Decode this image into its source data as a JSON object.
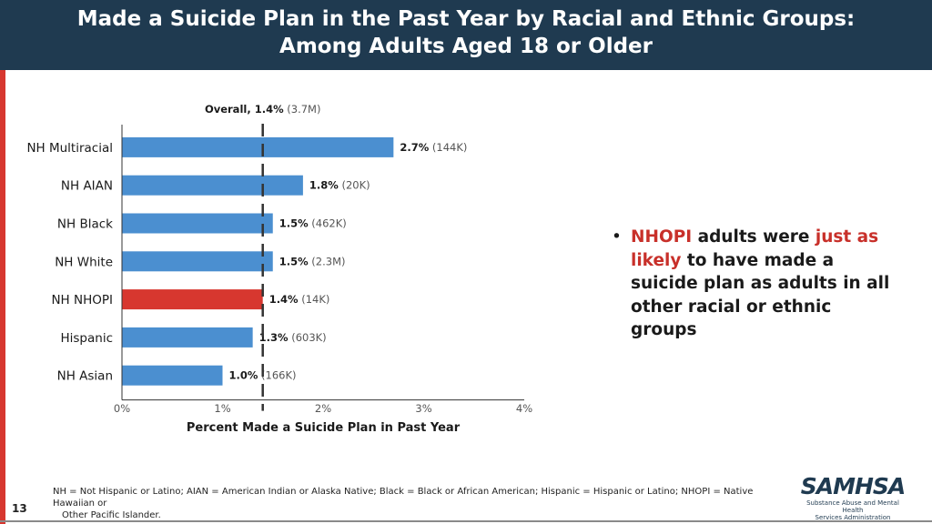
{
  "header": {
    "title_line1": "Made a Suicide Plan in the Past Year by Racial and Ethnic Groups:",
    "title_line2": "Among Adults Aged 18 or Older"
  },
  "chart_data": {
    "type": "bar",
    "orientation": "horizontal",
    "reference": {
      "label": "Overall, ",
      "value_text": "1.4%",
      "count": "(3.7M)",
      "value": 1.4
    },
    "categories": [
      "NH Multiracial",
      "NH AIAN",
      "NH Black",
      "NH White",
      "NH NHOPI",
      "Hispanic",
      "NH Asian"
    ],
    "values": [
      2.7,
      1.8,
      1.5,
      1.5,
      1.4,
      1.3,
      1.0
    ],
    "value_labels": [
      "2.7%",
      "1.8%",
      "1.5%",
      "1.5%",
      "1.4%",
      "1.3%",
      "1.0%"
    ],
    "counts": [
      "(144K)",
      "(20K)",
      "(462K)",
      "(2.3M)",
      "(14K)",
      "(603K)",
      "(166K)"
    ],
    "highlight": "NH NHOPI",
    "colors": {
      "bar": "#4b8fd0",
      "highlight": "#d7372f",
      "reference": "#333333"
    },
    "xlabel": "Percent Made a Suicide Plan in Past Year",
    "xlim": [
      0,
      4
    ],
    "xticks": [
      "0%",
      "1%",
      "2%",
      "3%",
      "4%"
    ],
    "grid": false
  },
  "bullet": {
    "marker": "•",
    "part1": "NHOPI",
    "part2": " adults were ",
    "part3": "just as likely",
    "part4": " to have made a suicide plan as adults in all other racial or ethnic groups"
  },
  "footnote": {
    "line1": "NH = Not Hispanic or Latino; AIAN = American Indian or Alaska Native; Black = Black or African American; Hispanic = Hispanic or Latino; NHOPI = Native Hawaiian or",
    "line2": "Other Pacific Islander."
  },
  "page_number": "13",
  "logo": {
    "mark": "SAMHSA",
    "line1": "Substance Abuse and Mental Health",
    "line2": "Services Administration"
  }
}
